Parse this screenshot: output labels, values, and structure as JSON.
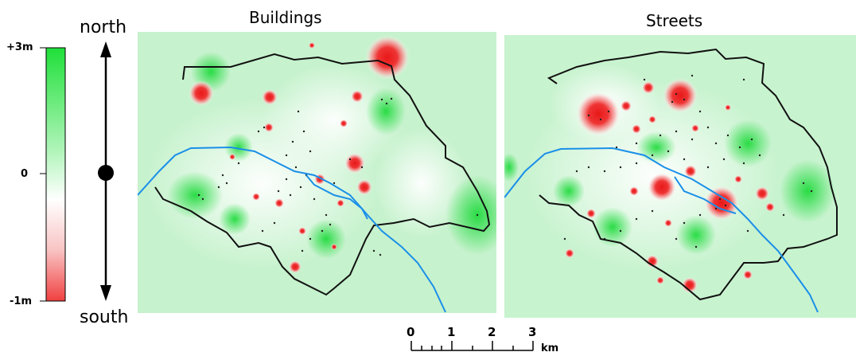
{
  "colors": {
    "positive": "#1fe03a",
    "neutral": "#ffffff",
    "negative": "#f04040",
    "river": "#1a8fe8",
    "boundary": "#111111"
  },
  "colorbar": {
    "top_label": "+3m",
    "mid_label": "0",
    "bottom_label": "-1m",
    "range": [
      -1,
      3
    ]
  },
  "orientation": {
    "north_label": "north",
    "south_label": "south",
    "icon": "north-south-arrow-icon"
  },
  "panels": [
    {
      "title": "Buildings"
    },
    {
      "title": "Streets"
    }
  ],
  "scale_bar": {
    "ticks": [
      "0",
      "1",
      "2",
      "3"
    ],
    "unit": "km"
  }
}
